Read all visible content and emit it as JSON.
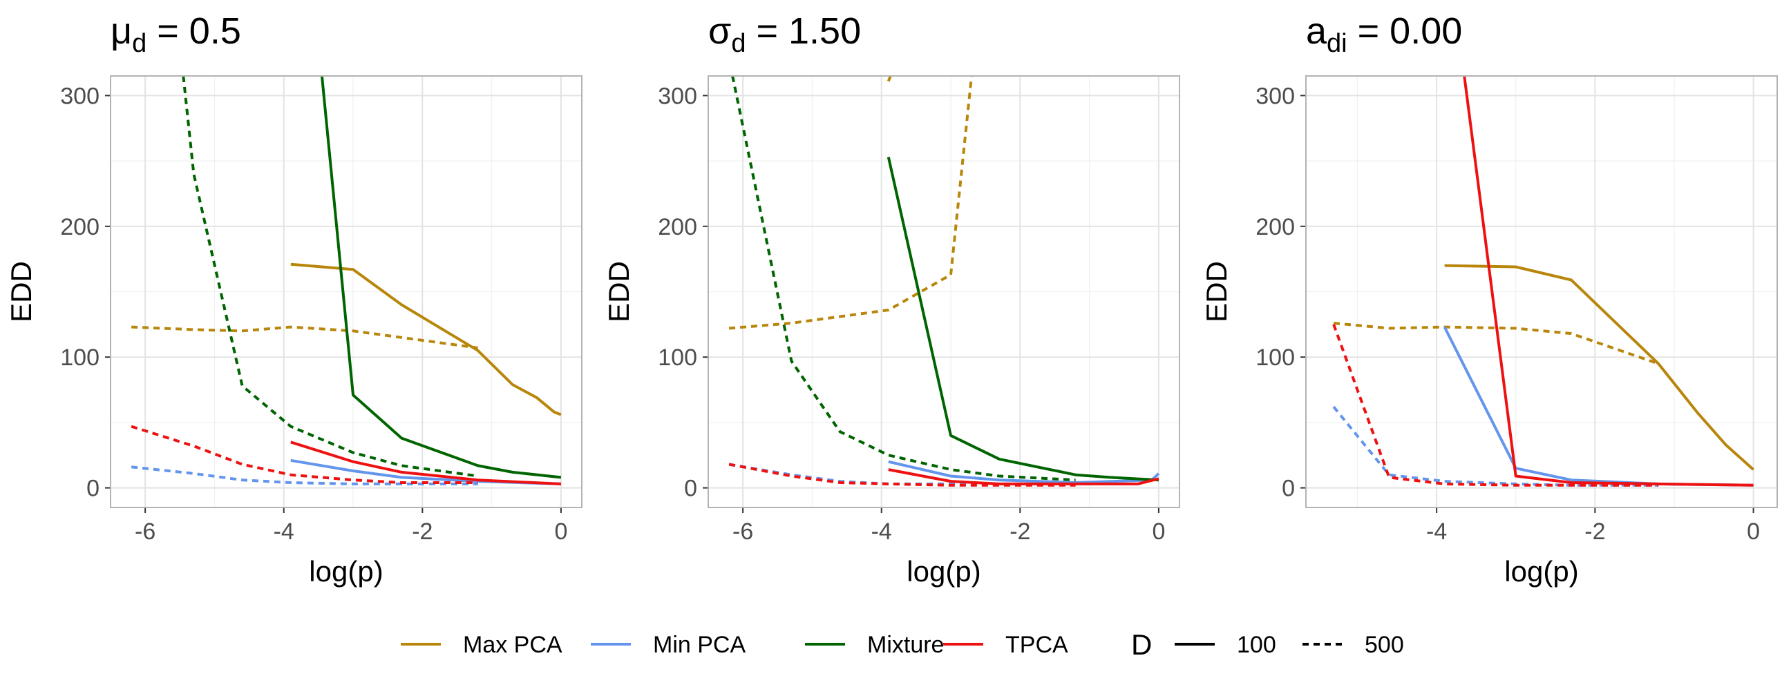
{
  "chart_data": [
    {
      "type": "line",
      "title_main": "μ",
      "title_sub": "d",
      "title_rest": " = 0.5",
      "xlabel": "log(p)",
      "ylabel": "EDD",
      "xlim": [
        -6.5,
        0.3
      ],
      "ylim": [
        -15,
        315
      ],
      "x_ticks": [
        -6,
        -4,
        -2,
        0
      ],
      "x_tick_labels": [
        "-6",
        "-4",
        "-2",
        "0"
      ],
      "y_ticks": [
        0,
        100,
        200,
        300
      ],
      "y_tick_labels": [
        "0",
        "100",
        "200",
        "300"
      ],
      "series": [
        {
          "name": "Max PCA",
          "D": "100",
          "points": [
            [
              -3.9,
              171
            ],
            [
              -3.0,
              167
            ],
            [
              -2.3,
              140
            ],
            [
              -1.2,
              105
            ],
            [
              -0.7,
              79
            ],
            [
              -0.35,
              69
            ],
            [
              -0.1,
              58
            ],
            [
              0,
              56
            ]
          ]
        },
        {
          "name": "Max PCA",
          "D": "500",
          "points": [
            [
              -6.2,
              123
            ],
            [
              -5.3,
              121
            ],
            [
              -4.6,
              120
            ],
            [
              -3.9,
              123
            ],
            [
              -3.0,
              120
            ],
            [
              -2.3,
              115
            ],
            [
              -1.2,
              107
            ]
          ]
        },
        {
          "name": "Min PCA",
          "D": "100",
          "points": [
            [
              -3.9,
              21
            ],
            [
              -3.0,
              13
            ],
            [
              -2.3,
              8
            ],
            [
              -1.2,
              5
            ],
            [
              0,
              3
            ]
          ]
        },
        {
          "name": "Min PCA",
          "D": "500",
          "points": [
            [
              -6.2,
              16
            ],
            [
              -5.3,
              11
            ],
            [
              -4.6,
              6
            ],
            [
              -3.9,
              4
            ],
            [
              -3.0,
              3
            ],
            [
              -2.3,
              3
            ],
            [
              -1.2,
              3
            ]
          ]
        },
        {
          "name": "Mixture",
          "D": "100",
          "points": [
            [
              -3.45,
              315
            ],
            [
              -3.0,
              71
            ],
            [
              -2.3,
              38
            ],
            [
              -1.2,
              17
            ],
            [
              -0.7,
              12
            ],
            [
              0,
              8
            ]
          ]
        },
        {
          "name": "Mixture",
          "D": "500",
          "points": [
            [
              -5.45,
              315
            ],
            [
              -5.3,
              240
            ],
            [
              -4.6,
              78
            ],
            [
              -3.9,
              47
            ],
            [
              -3.0,
              27
            ],
            [
              -2.3,
              17
            ],
            [
              -1.2,
              9
            ]
          ]
        },
        {
          "name": "TPCA",
          "D": "100",
          "points": [
            [
              -3.9,
              35
            ],
            [
              -3.0,
              20
            ],
            [
              -2.3,
              12
            ],
            [
              -1.2,
              6
            ],
            [
              0,
              3
            ]
          ]
        },
        {
          "name": "TPCA",
          "D": "500",
          "points": [
            [
              -6.2,
              47
            ],
            [
              -5.3,
              32
            ],
            [
              -4.6,
              18
            ],
            [
              -3.9,
              10
            ],
            [
              -3.0,
              6
            ],
            [
              -2.3,
              4
            ],
            [
              -1.2,
              4
            ]
          ]
        }
      ]
    },
    {
      "type": "line",
      "title_main": "σ",
      "title_sub": "d",
      "title_rest": " = 1.50",
      "xlabel": "log(p)",
      "ylabel": "EDD",
      "xlim": [
        -6.5,
        0.3
      ],
      "ylim": [
        -15,
        315
      ],
      "x_ticks": [
        -6,
        -4,
        -2,
        0
      ],
      "x_tick_labels": [
        "-6",
        "-4",
        "-2",
        "0"
      ],
      "y_ticks": [
        0,
        100,
        200,
        300
      ],
      "y_tick_labels": [
        "0",
        "100",
        "200",
        "300"
      ],
      "series": [
        {
          "name": "Max PCA",
          "D": "100",
          "points": [
            [
              -3.9,
              311
            ],
            [
              -3.87,
              315
            ]
          ]
        },
        {
          "name": "Max PCA",
          "D": "500",
          "points": [
            [
              -6.2,
              122
            ],
            [
              -5.3,
              126
            ],
            [
              -4.6,
              131
            ],
            [
              -3.9,
              136
            ],
            [
              -3.0,
              163
            ],
            [
              -2.7,
              315
            ]
          ]
        },
        {
          "name": "Min PCA",
          "D": "100",
          "points": [
            [
              -3.9,
              20
            ],
            [
              -3.0,
              9
            ],
            [
              -2.3,
              6
            ],
            [
              -1.2,
              4
            ],
            [
              -0.1,
              6
            ],
            [
              0,
              11
            ]
          ]
        },
        {
          "name": "Min PCA",
          "D": "500",
          "points": [
            [
              -6.2,
              18
            ],
            [
              -5.3,
              10
            ],
            [
              -4.6,
              5
            ],
            [
              -3.9,
              3
            ],
            [
              -3.0,
              3
            ],
            [
              -2.3,
              3
            ],
            [
              -1.2,
              3
            ]
          ]
        },
        {
          "name": "Mixture",
          "D": "100",
          "points": [
            [
              -3.9,
              253
            ],
            [
              -3.0,
              40
            ],
            [
              -2.3,
              22
            ],
            [
              -1.2,
              10
            ],
            [
              -0.7,
              8
            ],
            [
              0,
              6
            ]
          ]
        },
        {
          "name": "Mixture",
          "D": "500",
          "points": [
            [
              -6.15,
              315
            ],
            [
              -5.3,
              97
            ],
            [
              -4.6,
              43
            ],
            [
              -3.9,
              25
            ],
            [
              -3.0,
              14
            ],
            [
              -2.3,
              9
            ],
            [
              -1.2,
              6
            ]
          ]
        },
        {
          "name": "TPCA",
          "D": "100",
          "points": [
            [
              -3.9,
              14
            ],
            [
              -3.0,
              5
            ],
            [
              -2.3,
              3
            ],
            [
              -1.2,
              3
            ],
            [
              -0.3,
              3
            ],
            [
              0,
              7
            ]
          ]
        },
        {
          "name": "TPCA",
          "D": "500",
          "points": [
            [
              -6.2,
              18
            ],
            [
              -5.3,
              9
            ],
            [
              -4.6,
              4
            ],
            [
              -3.9,
              3
            ],
            [
              -3.0,
              2
            ],
            [
              -2.3,
              2
            ],
            [
              -1.2,
              2
            ]
          ]
        }
      ]
    },
    {
      "type": "line",
      "title_main": "a",
      "title_sub": "di",
      "title_rest": " = 0.00",
      "xlabel": "log(p)",
      "ylabel": "EDD",
      "xlim": [
        -5.65,
        0.3
      ],
      "ylim": [
        -15,
        315
      ],
      "x_ticks": [
        -4,
        -2,
        0
      ],
      "x_tick_labels": [
        "-4",
        "-2",
        "0"
      ],
      "y_ticks": [
        0,
        100,
        200,
        300
      ],
      "y_tick_labels": [
        "0",
        "100",
        "200",
        "300"
      ],
      "series": [
        {
          "name": "Max PCA",
          "D": "100",
          "points": [
            [
              -3.9,
              170
            ],
            [
              -3.0,
              169
            ],
            [
              -2.3,
              159
            ],
            [
              -1.2,
              95
            ],
            [
              -0.7,
              57
            ],
            [
              -0.35,
              33
            ],
            [
              0,
              14
            ]
          ]
        },
        {
          "name": "Max PCA",
          "D": "500",
          "points": [
            [
              -5.3,
              126
            ],
            [
              -4.6,
              122
            ],
            [
              -3.9,
              123
            ],
            [
              -3.0,
              122
            ],
            [
              -2.3,
              118
            ],
            [
              -1.2,
              95
            ]
          ]
        },
        {
          "name": "Min PCA",
          "D": "100",
          "points": [
            [
              -3.9,
              123
            ],
            [
              -3.0,
              15
            ],
            [
              -2.3,
              6
            ],
            [
              -1.2,
              3
            ],
            [
              0,
              2
            ]
          ]
        },
        {
          "name": "Min PCA",
          "D": "500",
          "points": [
            [
              -5.3,
              62
            ],
            [
              -4.6,
              10
            ],
            [
              -3.9,
              5
            ],
            [
              -3.0,
              3
            ],
            [
              -2.3,
              2
            ],
            [
              -1.2,
              2
            ]
          ]
        },
        {
          "name": "TPCA",
          "D": "100",
          "points": [
            [
              -3.65,
              315
            ],
            [
              -3.0,
              9
            ],
            [
              -2.3,
              4
            ],
            [
              -1.2,
              3
            ],
            [
              0,
              2
            ]
          ]
        },
        {
          "name": "TPCA",
          "D": "500",
          "points": [
            [
              -5.3,
              125
            ],
            [
              -4.6,
              8
            ],
            [
              -3.9,
              3
            ],
            [
              -3.0,
              2
            ],
            [
              -2.3,
              2
            ],
            [
              -1.2,
              2
            ]
          ]
        }
      ]
    }
  ],
  "legend": {
    "items": [
      {
        "name": "Max PCA",
        "color": "#b8860b"
      },
      {
        "name": "Min PCA",
        "color": "#6495ed"
      },
      {
        "name": "Mixture",
        "color": "#006400"
      },
      {
        "name": "TPCA",
        "color": "#ee1111"
      }
    ],
    "linetype_title": "D",
    "linetypes": [
      {
        "label": "100",
        "style": "solid"
      },
      {
        "label": "500",
        "style": "dashed"
      }
    ]
  }
}
